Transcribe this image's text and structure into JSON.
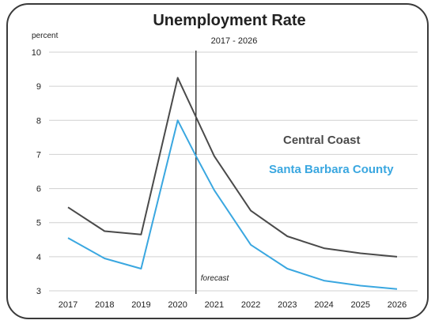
{
  "chart_data": {
    "type": "line",
    "title": "Unemployment Rate",
    "subtitle": "2017 - 2026",
    "ylabel": "percent",
    "xlabel": "",
    "categories": [
      "2017",
      "2018",
      "2019",
      "2020",
      "2021",
      "2022",
      "2023",
      "2024",
      "2025",
      "2026"
    ],
    "ylim": [
      3,
      10
    ],
    "yticks": [
      "3",
      "4",
      "5",
      "6",
      "7",
      "8",
      "9",
      "10"
    ],
    "grid": true,
    "forecast_marker": {
      "label": "forecast",
      "x": 2020.5
    },
    "legend_placement": "right",
    "series": [
      {
        "name": "Central Coast",
        "color": "#4a4a4a",
        "x": [
          2017,
          2018,
          2019,
          2020,
          2020.5,
          2021,
          2022,
          2023,
          2024,
          2025,
          2026
        ],
        "values": [
          5.45,
          4.75,
          4.65,
          9.25,
          8.1,
          6.95,
          5.35,
          4.6,
          4.25,
          4.1,
          4.0
        ]
      },
      {
        "name": "Santa Barbara County",
        "color": "#3aa7e0",
        "x": [
          2017,
          2018,
          2019,
          2020,
          2020.5,
          2021,
          2022,
          2023,
          2024,
          2025,
          2026
        ],
        "values": [
          4.55,
          3.95,
          3.65,
          8.0,
          6.95,
          5.95,
          4.35,
          3.65,
          3.3,
          3.15,
          3.05
        ]
      }
    ]
  }
}
